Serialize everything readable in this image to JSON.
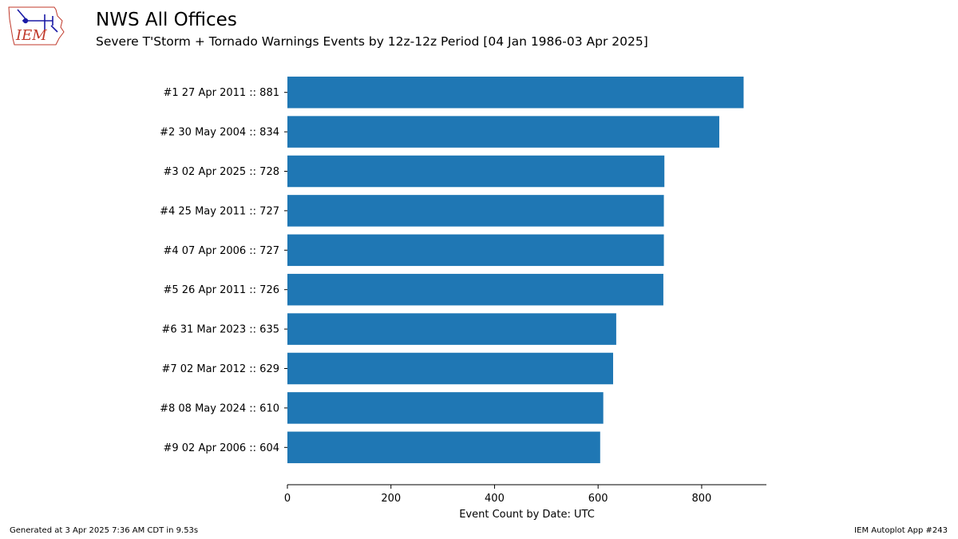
{
  "logo": {
    "text": "IEM",
    "icon": "iowa-state-outline-with-weather-vane"
  },
  "header": {
    "title": "NWS All Offices",
    "subtitle": "Severe T'Storm + Tornado Warnings Events by 12z-12z Period [04 Jan 1986-03 Apr 2025]"
  },
  "footer": {
    "left": "Generated at 3 Apr 2025 7:36 AM CDT in 9.53s",
    "right": "IEM Autoplot App #243"
  },
  "colors": {
    "bar": "#1f77b4",
    "logo_blue": "#1a1aa6",
    "logo_red": "#c0392b"
  },
  "chart_data": {
    "type": "bar",
    "orientation": "horizontal",
    "title": "NWS All Offices",
    "subtitle": "Severe T'Storm + Tornado Warnings Events by 12z-12z Period [04 Jan 1986-03 Apr 2025]",
    "xlabel": "Event Count by Date: UTC",
    "ylabel": "",
    "xlim": [
      0,
      925
    ],
    "xticks": [
      0,
      200,
      400,
      600,
      800
    ],
    "grid": false,
    "categories": [
      "#1  27 Apr 2011 :: 881",
      "#2  30 May 2004 :: 834",
      "#3  02 Apr 2025 :: 728",
      "#4  25 May 2011 :: 727",
      "#4  07 Apr 2006 :: 727",
      "#5  26 Apr 2011 :: 726",
      "#6  31 Mar 2023 :: 635",
      "#7  02 Mar 2012 :: 629",
      "#8  08 May 2024 :: 610",
      "#9  02 Apr 2006 :: 604"
    ],
    "values": [
      881,
      834,
      728,
      727,
      727,
      726,
      635,
      629,
      610,
      604
    ]
  }
}
